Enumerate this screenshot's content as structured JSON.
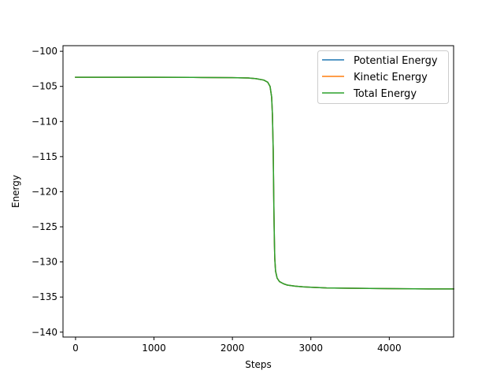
{
  "chart_data": {
    "type": "line",
    "title": "",
    "xlabel": "Steps",
    "ylabel": "Energy",
    "xlim": [
      -160,
      4820
    ],
    "ylim": [
      -140.7,
      -99.2
    ],
    "xticks": [
      0,
      1000,
      2000,
      3000,
      4000
    ],
    "yticks": [
      -100,
      -105,
      -110,
      -115,
      -120,
      -125,
      -130,
      -135,
      -140
    ],
    "ytick_labels": [
      "−100",
      "−105",
      "−110",
      "−115",
      "−120",
      "−125",
      "−130",
      "−135",
      "−140"
    ],
    "grid": false,
    "legend_position": "top-right",
    "series": [
      {
        "name": "Potential Energy",
        "color": "#1f77b4",
        "x": [
          0,
          500,
          1000,
          1500,
          2000,
          2200,
          2300,
          2400,
          2450,
          2480,
          2500,
          2510,
          2520,
          2525,
          2530,
          2535,
          2540,
          2550,
          2570,
          2600,
          2650,
          2700,
          2800,
          2900,
          3000,
          3200,
          3500,
          4000,
          4500,
          4820
        ],
        "y": [
          -103.7,
          -103.7,
          -103.7,
          -103.72,
          -103.75,
          -103.8,
          -103.9,
          -104.1,
          -104.4,
          -105.0,
          -106.5,
          -109.0,
          -114.0,
          -119.0,
          -123.5,
          -127.0,
          -129.5,
          -131.3,
          -132.3,
          -132.8,
          -133.1,
          -133.3,
          -133.45,
          -133.55,
          -133.6,
          -133.7,
          -133.75,
          -133.8,
          -133.85,
          -133.85
        ]
      },
      {
        "name": "Kinetic Energy",
        "color": "#ff7f0e",
        "x": [
          0,
          500,
          1000,
          1500,
          2000,
          2200,
          2300,
          2400,
          2450,
          2480,
          2500,
          2510,
          2520,
          2525,
          2530,
          2535,
          2540,
          2550,
          2570,
          2600,
          2650,
          2700,
          2800,
          2900,
          3000,
          3200,
          3500,
          4000,
          4500,
          4820
        ],
        "y": [
          -103.7,
          -103.7,
          -103.7,
          -103.72,
          -103.75,
          -103.8,
          -103.9,
          -104.1,
          -104.4,
          -105.0,
          -106.5,
          -109.0,
          -114.0,
          -119.0,
          -123.5,
          -127.0,
          -129.5,
          -131.3,
          -132.3,
          -132.8,
          -133.1,
          -133.3,
          -133.45,
          -133.55,
          -133.6,
          -133.7,
          -133.75,
          -133.8,
          -133.85,
          -133.85
        ]
      },
      {
        "name": "Total Energy",
        "color": "#2ca02c",
        "x": [
          0,
          500,
          1000,
          1500,
          2000,
          2200,
          2300,
          2400,
          2450,
          2480,
          2500,
          2510,
          2520,
          2525,
          2530,
          2535,
          2540,
          2550,
          2570,
          2600,
          2650,
          2700,
          2800,
          2900,
          3000,
          3200,
          3500,
          4000,
          4500,
          4820
        ],
        "y": [
          -103.7,
          -103.7,
          -103.7,
          -103.72,
          -103.75,
          -103.8,
          -103.9,
          -104.1,
          -104.4,
          -105.0,
          -106.5,
          -109.0,
          -114.0,
          -119.0,
          -123.5,
          -127.0,
          -129.5,
          -131.3,
          -132.3,
          -132.8,
          -133.1,
          -133.3,
          -133.45,
          -133.55,
          -133.6,
          -133.7,
          -133.75,
          -133.8,
          -133.85,
          -133.85
        ]
      }
    ]
  }
}
